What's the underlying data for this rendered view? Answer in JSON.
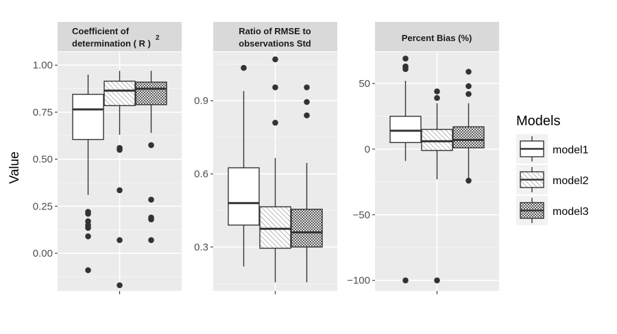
{
  "chart_data": {
    "type": "boxplot",
    "ylabel": "Value",
    "legend": {
      "title": "Models",
      "placement": "right",
      "entries": [
        "model1",
        "model2",
        "model3"
      ]
    },
    "fill_patterns": {
      "model1": "plain",
      "model2": "diagonal-hatch",
      "model3": "crosshatch"
    },
    "panels": [
      {
        "title_lines": [
          "Coefficient of",
          "determination ( R )"
        ],
        "title_superscript": "2",
        "ylim": [
          -0.2,
          1.07
        ],
        "ticks": [
          0.0,
          0.25,
          0.5,
          0.75,
          1.0
        ],
        "tick_labels": [
          "0.00",
          "0.25",
          "0.50",
          "0.75",
          "1.00"
        ],
        "minor_ticks": [
          -0.125,
          0.125,
          0.375,
          0.625,
          0.875
        ],
        "boxes": [
          {
            "model": "model1",
            "low": 0.31,
            "q1": 0.605,
            "median": 0.765,
            "q3": 0.845,
            "high": 0.95,
            "outliers": [
              0.22,
              0.21,
              0.17,
              0.15,
              0.135,
              0.09,
              -0.09
            ]
          },
          {
            "model": "model2",
            "low": 0.63,
            "q1": 0.785,
            "median": 0.865,
            "q3": 0.915,
            "high": 0.97,
            "outliers": [
              0.56,
              0.55,
              0.335,
              0.07,
              -0.17
            ]
          },
          {
            "model": "model3",
            "low": 0.64,
            "q1": 0.79,
            "median": 0.875,
            "q3": 0.91,
            "high": 0.97,
            "outliers": [
              0.575,
              0.285,
              0.19,
              0.18,
              0.07
            ]
          }
        ]
      },
      {
        "title_lines": [
          "Ratio of RMSE to",
          "observations Std"
        ],
        "title_superscript": "",
        "ylim": [
          0.12,
          1.1
        ],
        "ticks": [
          0.3,
          0.6,
          0.9
        ],
        "tick_labels": [
          "0.3",
          "0.6",
          "0.9"
        ],
        "minor_ticks": [
          0.15,
          0.45,
          0.75,
          1.05
        ],
        "boxes": [
          {
            "model": "model1",
            "low": 0.22,
            "q1": 0.39,
            "median": 0.48,
            "q3": 0.625,
            "high": 0.94,
            "outliers": [
              1.035
            ]
          },
          {
            "model": "model2",
            "low": 0.155,
            "q1": 0.295,
            "median": 0.375,
            "q3": 0.465,
            "high": 0.665,
            "outliers": [
              1.07,
              0.955,
              0.81
            ]
          },
          {
            "model": "model3",
            "low": 0.155,
            "q1": 0.3,
            "median": 0.36,
            "q3": 0.455,
            "high": 0.645,
            "outliers": [
              0.955,
              0.895,
              0.84
            ]
          }
        ]
      },
      {
        "title_lines": [
          "Percent Bias (%)"
        ],
        "title_superscript": "",
        "ylim": [
          -108,
          74
        ],
        "ticks": [
          -100,
          -50,
          0,
          50
        ],
        "tick_labels": [
          "−100",
          "−50",
          "0",
          "50"
        ],
        "minor_ticks": [
          -75,
          -25,
          25
        ],
        "boxes": [
          {
            "model": "model1",
            "low": -9,
            "q1": 5,
            "median": 14,
            "q3": 25,
            "high": 52,
            "outliers": [
              69,
              63,
              61,
              -100
            ]
          },
          {
            "model": "model2",
            "low": -23,
            "q1": -1,
            "median": 6,
            "q3": 15,
            "high": 35,
            "outliers": [
              44,
              39,
              -100
            ]
          },
          {
            "model": "model3",
            "low": -25,
            "q1": 1,
            "median": 7,
            "q3": 17,
            "high": 35,
            "outliers": [
              59,
              48,
              42,
              -24
            ]
          }
        ]
      }
    ]
  }
}
